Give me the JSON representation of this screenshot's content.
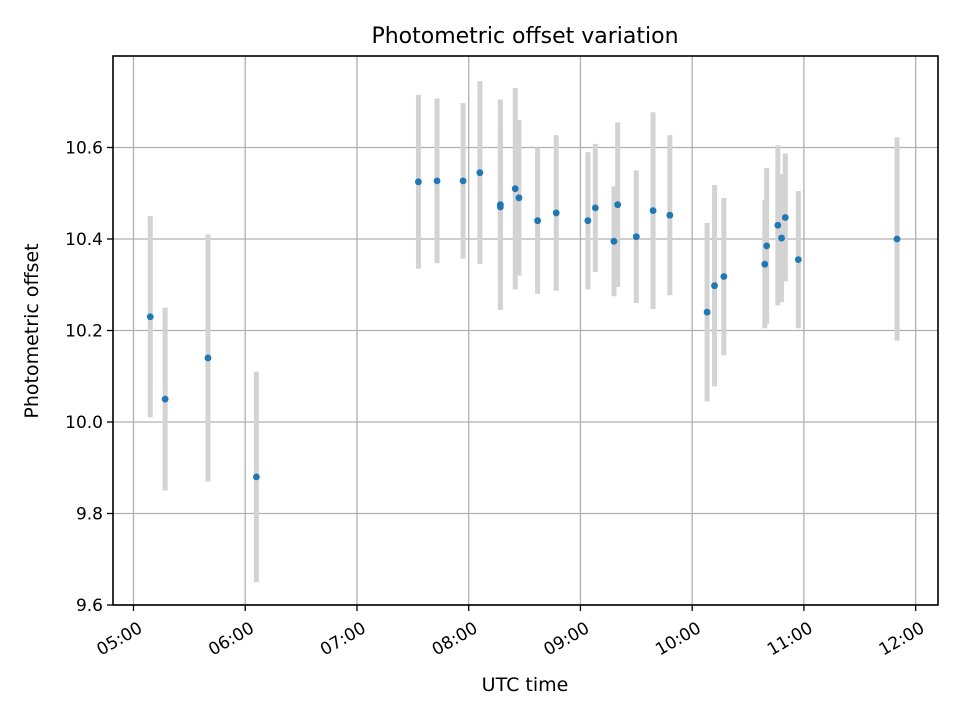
{
  "chart_data": {
    "type": "scatter",
    "title": "Photometric offset variation",
    "xlabel": "UTC time",
    "ylabel": "Photometric offset",
    "xlim": [
      "04:49",
      "12:12"
    ],
    "ylim": [
      9.6,
      10.8
    ],
    "grid": true,
    "x_ticks": [
      "05:00",
      "06:00",
      "07:00",
      "08:00",
      "09:00",
      "10:00",
      "11:00",
      "12:00"
    ],
    "y_ticks": [
      9.6,
      9.8,
      10.0,
      10.2,
      10.4,
      10.6
    ],
    "y_tick_labels": [
      "9.6",
      "9.8",
      "10.0",
      "10.2",
      "10.4",
      "10.6"
    ],
    "colors": {
      "marker": "#1f77b4",
      "errorbar": "#d3d3d3"
    },
    "points": [
      {
        "time": "05:09",
        "value": 10.23,
        "err": 0.22
      },
      {
        "time": "05:17",
        "value": 10.05,
        "err": 0.2
      },
      {
        "time": "05:40",
        "value": 10.14,
        "err": 0.27
      },
      {
        "time": "06:06",
        "value": 9.88,
        "err": 0.23
      },
      {
        "time": "07:33",
        "value": 10.525,
        "err": 0.19
      },
      {
        "time": "07:43",
        "value": 10.527,
        "err": 0.18
      },
      {
        "time": "07:57",
        "value": 10.527,
        "err": 0.17
      },
      {
        "time": "08:06",
        "value": 10.545,
        "err": 0.2
      },
      {
        "time": "08:17",
        "value": 10.47,
        "err": 0.17
      },
      {
        "time": "08:17",
        "value": 10.475,
        "err": 0.23
      },
      {
        "time": "08:25",
        "value": 10.51,
        "err": 0.22
      },
      {
        "time": "08:27",
        "value": 10.49,
        "err": 0.17
      },
      {
        "time": "08:37",
        "value": 10.44,
        "err": 0.16
      },
      {
        "time": "08:47",
        "value": 10.457,
        "err": 0.17
      },
      {
        "time": "09:04",
        "value": 10.44,
        "err": 0.15
      },
      {
        "time": "09:08",
        "value": 10.468,
        "err": 0.14
      },
      {
        "time": "09:18",
        "value": 10.395,
        "err": 0.12
      },
      {
        "time": "09:20",
        "value": 10.475,
        "err": 0.18
      },
      {
        "time": "09:30",
        "value": 10.405,
        "err": 0.145
      },
      {
        "time": "09:39",
        "value": 10.462,
        "err": 0.215
      },
      {
        "time": "09:48",
        "value": 10.452,
        "err": 0.175
      },
      {
        "time": "10:08",
        "value": 10.24,
        "err": 0.195
      },
      {
        "time": "10:12",
        "value": 10.298,
        "err": 0.22
      },
      {
        "time": "10:17",
        "value": 10.318,
        "err": 0.172
      },
      {
        "time": "10:39",
        "value": 10.345,
        "err": 0.14
      },
      {
        "time": "10:40",
        "value": 10.385,
        "err": 0.17
      },
      {
        "time": "10:46",
        "value": 10.43,
        "err": 0.175
      },
      {
        "time": "10:48",
        "value": 10.402,
        "err": 0.14
      },
      {
        "time": "10:50",
        "value": 10.447,
        "err": 0.14
      },
      {
        "time": "10:57",
        "value": 10.355,
        "err": 0.15
      },
      {
        "time": "11:50",
        "value": 10.4,
        "err": 0.222
      }
    ]
  }
}
